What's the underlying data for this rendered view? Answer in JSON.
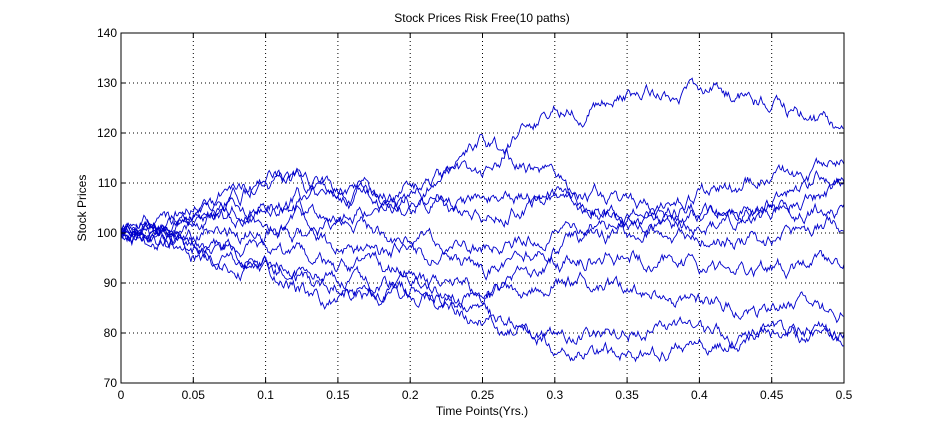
{
  "chart_data": {
    "type": "line",
    "title": "Stock Prices Risk Free(10 paths)",
    "xlabel": "Time Points(Yrs.)",
    "ylabel": "Stock Prices",
    "xlim": [
      0,
      0.5
    ],
    "ylim": [
      70,
      140
    ],
    "xticks": [
      0,
      0.05,
      0.1,
      0.15,
      0.2,
      0.25,
      0.3,
      0.35,
      0.4,
      0.45,
      0.5
    ],
    "xtick_labels": [
      "0",
      "0.05",
      "0.1",
      "0.15",
      "0.2",
      "0.25",
      "0.3",
      "0.35",
      "0.4",
      "0.45",
      "0.5"
    ],
    "yticks": [
      70,
      80,
      90,
      100,
      110,
      120,
      130,
      140
    ],
    "ytick_labels": [
      "70",
      "80",
      "90",
      "100",
      "110",
      "120",
      "130",
      "140"
    ],
    "grid": true,
    "line_color": "#0000cc",
    "series": [
      {
        "x": [
          0,
          0.05,
          0.1,
          0.15,
          0.2,
          0.25,
          0.3,
          0.35,
          0.4,
          0.45,
          0.5
        ],
        "values": [
          100,
          104,
          106,
          108,
          109,
          112,
          125,
          127,
          129,
          126,
          120
        ]
      },
      {
        "x": [
          0,
          0.05,
          0.1,
          0.15,
          0.2,
          0.25,
          0.3,
          0.35,
          0.4,
          0.45,
          0.5
        ],
        "values": [
          100,
          105,
          112,
          108,
          106,
          118,
          110,
          105,
          103,
          104,
          110
        ]
      },
      {
        "x": [
          0,
          0.05,
          0.1,
          0.15,
          0.2,
          0.25,
          0.3,
          0.35,
          0.4,
          0.45,
          0.5
        ],
        "values": [
          100,
          104,
          110,
          107,
          106,
          105,
          106,
          104,
          108,
          112,
          111
        ]
      },
      {
        "x": [
          0,
          0.05,
          0.1,
          0.15,
          0.2,
          0.25,
          0.3,
          0.35,
          0.4,
          0.45,
          0.5
        ],
        "values": [
          100,
          102,
          106,
          104,
          108,
          106,
          108,
          103,
          101,
          107,
          113
        ]
      },
      {
        "x": [
          0,
          0.05,
          0.1,
          0.15,
          0.2,
          0.25,
          0.3,
          0.35,
          0.4,
          0.45,
          0.5
        ],
        "values": [
          100,
          101,
          103,
          101,
          99,
          97,
          100,
          103,
          105,
          104,
          105
        ]
      },
      {
        "x": [
          0,
          0.05,
          0.1,
          0.15,
          0.2,
          0.25,
          0.3,
          0.35,
          0.4,
          0.45,
          0.5
        ],
        "values": [
          100,
          99,
          101,
          97,
          96,
          93,
          97,
          100,
          99,
          98,
          102
        ]
      },
      {
        "x": [
          0,
          0.05,
          0.1,
          0.15,
          0.2,
          0.25,
          0.3,
          0.35,
          0.4,
          0.45,
          0.5
        ],
        "values": [
          100,
          98,
          96,
          92,
          93,
          89,
          94,
          96,
          93,
          93,
          94
        ]
      },
      {
        "x": [
          0,
          0.05,
          0.1,
          0.15,
          0.2,
          0.25,
          0.3,
          0.35,
          0.4,
          0.45,
          0.5
        ],
        "values": [
          100,
          97,
          93,
          90,
          88,
          86,
          91,
          88,
          86,
          85,
          84
        ]
      },
      {
        "x": [
          0,
          0.05,
          0.1,
          0.15,
          0.2,
          0.25,
          0.3,
          0.35,
          0.4,
          0.45,
          0.5
        ],
        "values": [
          100,
          96,
          91,
          86,
          89,
          82,
          80,
          81,
          79,
          80,
          79
        ]
      },
      {
        "x": [
          0,
          0.05,
          0.1,
          0.15,
          0.2,
          0.25,
          0.3,
          0.35,
          0.4,
          0.45,
          0.5
        ],
        "values": [
          100,
          97,
          94,
          91,
          91,
          84,
          77,
          76,
          77,
          81,
          78
        ]
      }
    ]
  }
}
